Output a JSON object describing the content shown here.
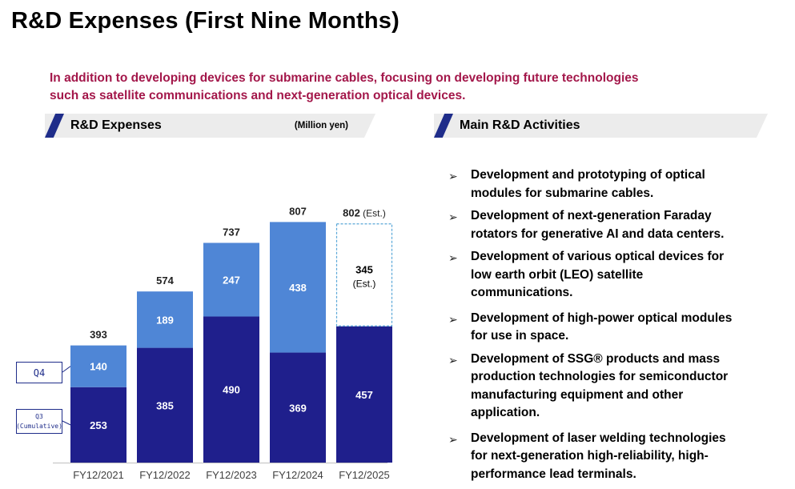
{
  "page": {
    "title": "R&D Expenses (First Nine Months)",
    "subtitle_line1": "In addition to developing devices for submarine cables, focusing on developing future technologies",
    "subtitle_line2": "such as satellite communications and next-generation optical devices."
  },
  "left_header": {
    "label": "R&D Expenses",
    "unit": "(Million yen)"
  },
  "right_header": {
    "label": "Main R&D Activities"
  },
  "activities": [
    {
      "lines": [
        "Development and prototyping of optical",
        "modules for submarine cables."
      ]
    },
    {
      "lines": [
        "Development of next-generation Faraday",
        "rotators for generative AI and data centers."
      ]
    },
    {
      "lines": [
        "Development of various optical devices for",
        "low earth orbit (LEO) satellite",
        "communications."
      ]
    },
    {
      "lines": [
        "Development of high-power optical modules",
        "for use in space."
      ]
    },
    {
      "lines": [
        "Development of SSG® products and mass",
        "production technologies for semiconductor",
        "manufacturing equipment and other",
        "application."
      ]
    },
    {
      "lines": [
        "Development of laser welding technologies",
        "for next-generation high-reliability, high-",
        "performance lead terminals."
      ]
    }
  ],
  "colors": {
    "q3": "#1f1f8c",
    "q4": "#4f86d6",
    "q4_est_border": "#5aa7d8",
    "title": "#000000",
    "subtitle": "#a3174a",
    "header_bg": "#ececec",
    "header_slash": "#1f2d8a"
  },
  "chart_data": {
    "type": "bar",
    "stacked": true,
    "categories": [
      "FY12/2021",
      "FY12/2022",
      "FY12/2023",
      "FY12/2024",
      "FY12/2025"
    ],
    "series": [
      {
        "name": "Q3\n(Cumulative)",
        "values": [
          253,
          385,
          490,
          369,
          457
        ]
      },
      {
        "name": "Q4",
        "values": [
          140,
          189,
          247,
          438,
          345
        ],
        "estimated_index": 4
      }
    ],
    "totals": [
      393,
      574,
      737,
      807,
      802
    ],
    "est_label": "(Est.)",
    "legend_q4": "Q4",
    "legend_q3_line1": "Q3",
    "legend_q3_line2": "(Cumulative)",
    "ylim": [
      0,
      900
    ]
  }
}
